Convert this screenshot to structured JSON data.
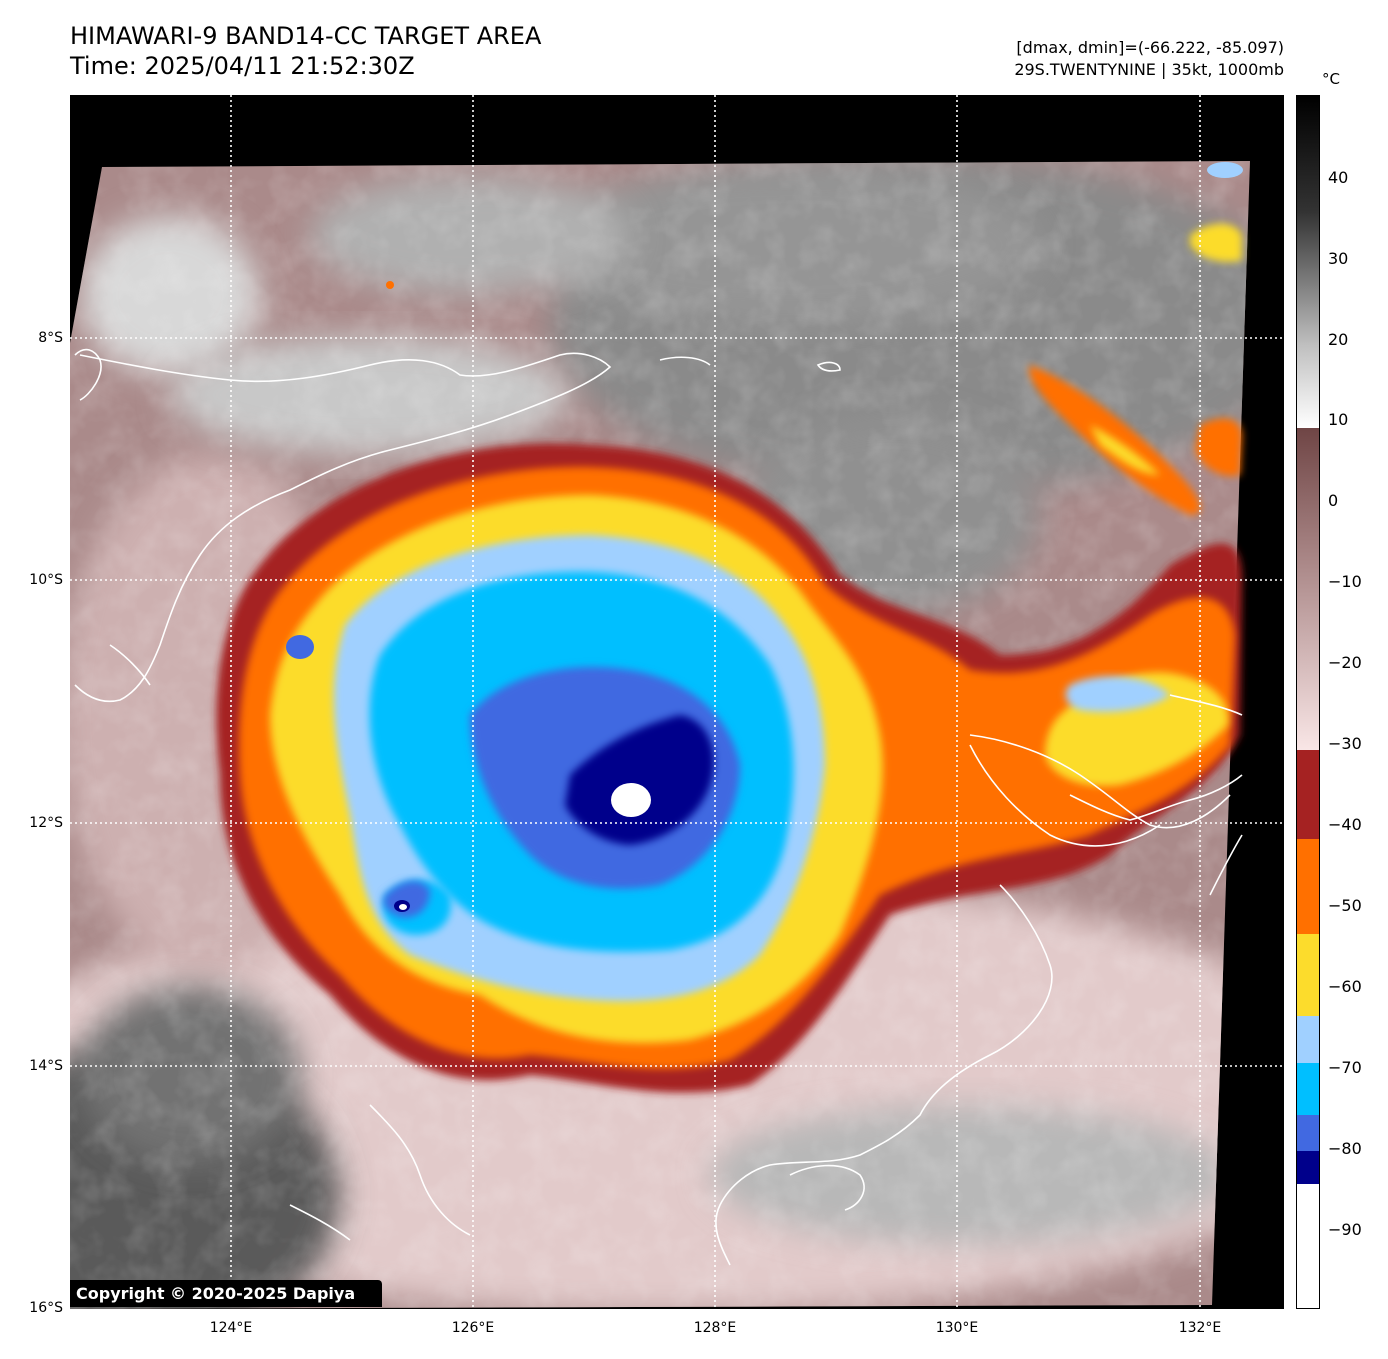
{
  "title": {
    "line1": "HIMAWARI-9 BAND14-CC TARGET AREA",
    "line2": "Time: 2025/04/11 21:52:30Z"
  },
  "info": {
    "line1": "[dmax, dmin]=(-66.222, -85.097)",
    "line2": "29S.TWENTYNINE | 35kt, 1000mb"
  },
  "map": {
    "lon_labels": [
      "124°E",
      "126°E",
      "128°E",
      "130°E",
      "132°E"
    ],
    "lat_labels": [
      "8°S",
      "10°S",
      "12°S",
      "14°S",
      "16°S"
    ],
    "gridlines": "dotted white",
    "coastline_color": "#ffffff",
    "storm_center": "approx 127.2°E, 11.8°S"
  },
  "colorbar": {
    "unit": "°C",
    "tick_labels": [
      "40",
      "30",
      "20",
      "10",
      "0",
      "−10",
      "−20",
      "−30",
      "−40",
      "−50",
      "−60",
      "−70",
      "−80",
      "−90"
    ],
    "bands": [
      {
        "range": "< -85",
        "color": "#ffffff"
      },
      {
        "range": "-85 to -80",
        "color": "#00008b"
      },
      {
        "range": "-80 to -75",
        "color": "#4169e1"
      },
      {
        "range": "-75 to -69",
        "color": "#00bfff"
      },
      {
        "range": "-69 to -63",
        "color": "#a0d0ff"
      },
      {
        "range": "-63 to -52",
        "color": "#fcdc2c"
      },
      {
        "range": "-52 to -41",
        "color": "#ff7000"
      },
      {
        "range": "-41 to -30",
        "color": "#a52222"
      },
      {
        "range": "-30 to 9",
        "color": "brown-pink gradient"
      },
      {
        "range": "9 to 50",
        "color": "white-to-black grayscale"
      }
    ]
  },
  "copyright": "Copyright © 2020-2025 Dapiya"
}
